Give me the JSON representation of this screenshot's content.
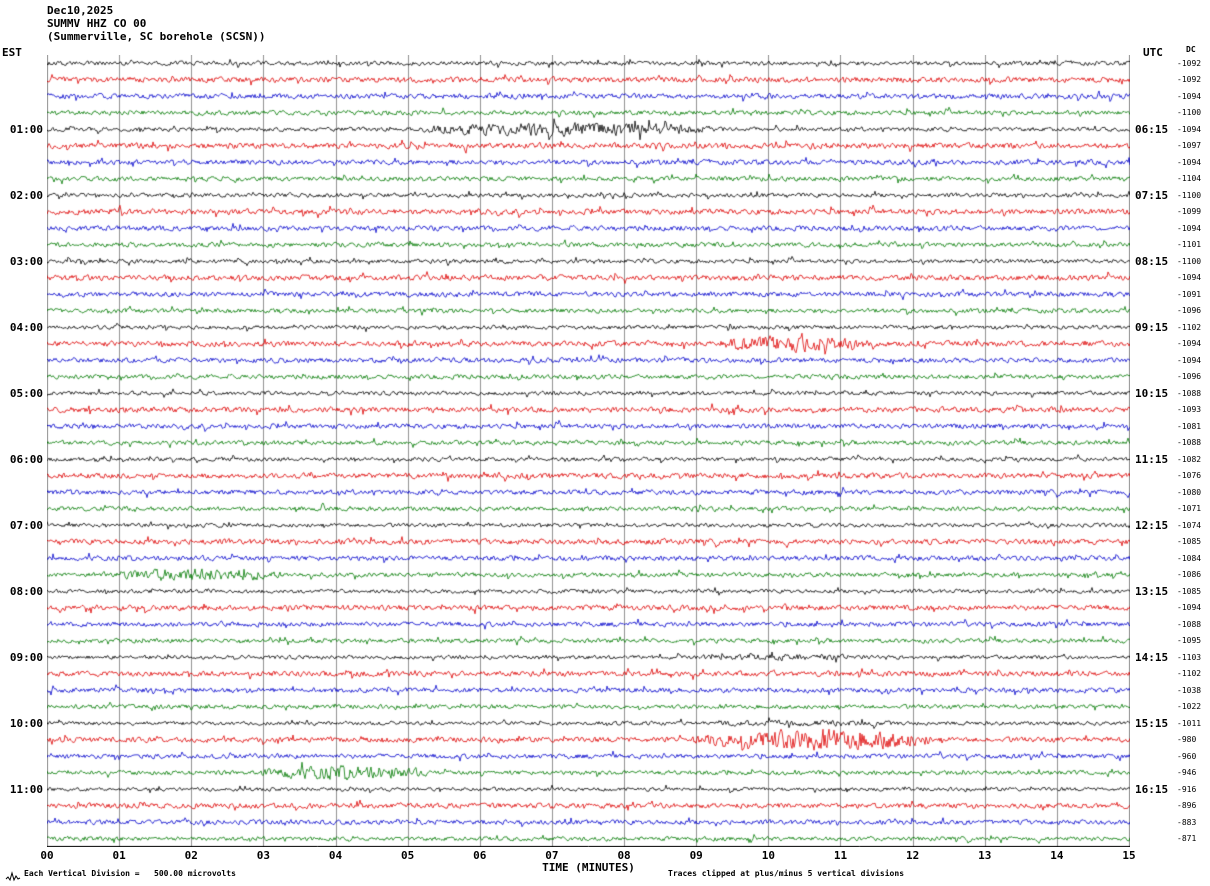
{
  "header": {
    "date": "Dec10,2025",
    "station": "SUMMV HHZ CO 00",
    "location": "(Summerville, SC borehole (SCSN))"
  },
  "axes": {
    "left_label": "EST",
    "right_label": "UTC",
    "dc_label": "DC",
    "x_title": "TIME (MINUTES)",
    "x_ticks": [
      "00",
      "01",
      "02",
      "03",
      "04",
      "05",
      "06",
      "07",
      "08",
      "09",
      "10",
      "11",
      "12",
      "13",
      "14",
      "15"
    ]
  },
  "footer": {
    "left": "Each Vertical Division =   500.00 microvolts",
    "right": "Traces clipped at plus/minus 5 vertical divisions"
  },
  "left_time_labels": [
    {
      "row": 4,
      "label": "01:00"
    },
    {
      "row": 8,
      "label": "02:00"
    },
    {
      "row": 12,
      "label": "03:00"
    },
    {
      "row": 16,
      "label": "04:00"
    },
    {
      "row": 20,
      "label": "05:00"
    },
    {
      "row": 24,
      "label": "06:00"
    },
    {
      "row": 28,
      "label": "07:00"
    },
    {
      "row": 32,
      "label": "08:00"
    },
    {
      "row": 36,
      "label": "09:00"
    },
    {
      "row": 40,
      "label": "10:00"
    },
    {
      "row": 44,
      "label": "11:00"
    }
  ],
  "right_time_labels": [
    {
      "row": 4,
      "label": "06:15"
    },
    {
      "row": 8,
      "label": "07:15"
    },
    {
      "row": 12,
      "label": "08:15"
    },
    {
      "row": 16,
      "label": "09:15"
    },
    {
      "row": 20,
      "label": "10:15"
    },
    {
      "row": 24,
      "label": "11:15"
    },
    {
      "row": 28,
      "label": "12:15"
    },
    {
      "row": 32,
      "label": "13:15"
    },
    {
      "row": 36,
      "label": "14:15"
    },
    {
      "row": 40,
      "label": "15:15"
    },
    {
      "row": 44,
      "label": "16:15"
    }
  ],
  "chart_data": {
    "type": "line",
    "subtype": "helicorder-seismogram",
    "title": "SUMMV HHZ CO 00 — Summerville, SC borehole (SCSN) — Dec10,2025",
    "xlabel": "TIME (MINUTES)",
    "x_range_minutes": [
      0,
      15
    ],
    "minutes_per_row": 15,
    "rows": 48,
    "grid": "vertical lines at every minute",
    "grid_color": "#909090",
    "color_cycle": [
      "black",
      "red",
      "blue",
      "green"
    ],
    "trace_colors": {
      "black": "#000000",
      "red": "#dd0000",
      "blue": "#0000cc",
      "green": "#007a00"
    },
    "vertical_division_microvolts": 500.0,
    "clip_divisions": 5,
    "dc_offsets": [
      -1092,
      -1092,
      -1094,
      -1100,
      -1094,
      -1097,
      -1094,
      -1104,
      -1100,
      -1099,
      -1094,
      -1101,
      -1100,
      -1094,
      -1091,
      -1096,
      -1102,
      -1094,
      -1094,
      -1096,
      -1088,
      -1093,
      -1081,
      -1088,
      -1082,
      -1076,
      -1080,
      -1071,
      -1074,
      -1085,
      -1084,
      -1086,
      -1085,
      -1094,
      -1088,
      -1095,
      -1103,
      -1102,
      -1038,
      -1022,
      -1011,
      -980,
      -960,
      -946,
      -916,
      -896,
      -883,
      -871
    ],
    "events": [
      {
        "row": 4,
        "start": 5.1,
        "end": 9.4,
        "amp": 3.2,
        "note": "high-frequency burst, 01:00 EST black trace"
      },
      {
        "row": 17,
        "start": 9.3,
        "end": 11.4,
        "amp": 3.0,
        "note": "burst, 04:15 EST red trace"
      },
      {
        "row": 31,
        "start": 0.9,
        "end": 3.3,
        "amp": 3.0,
        "note": "burst, 07:45 EST green trace"
      },
      {
        "row": 36,
        "start": 9.0,
        "end": 11.4,
        "amp": 1.7,
        "note": "minor burst, 09:00 EST black trace"
      },
      {
        "row": 40,
        "start": 9.0,
        "end": 11.8,
        "amp": 1.6,
        "note": "minor burst, 10:00 EST black trace"
      },
      {
        "row": 41,
        "start": 8.9,
        "end": 12.3,
        "amp": 4.2,
        "note": "large burst, 10:15 EST red trace"
      },
      {
        "row": 43,
        "start": 2.9,
        "end": 5.3,
        "amp": 3.2,
        "note": "burst, 10:45 EST green trace"
      }
    ]
  }
}
